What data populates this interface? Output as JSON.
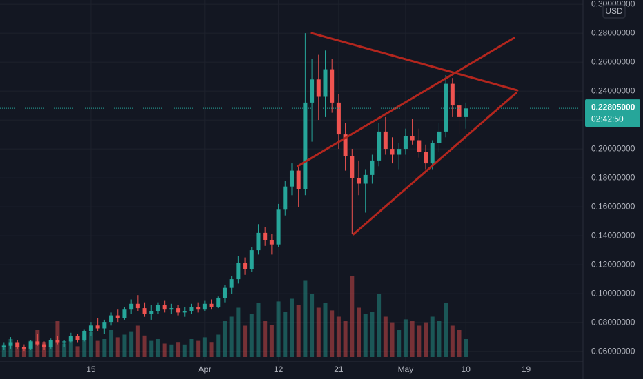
{
  "chart_data": {
    "type": "candlestick",
    "currency": "USD",
    "x": [
      1,
      2,
      3,
      4,
      5,
      6,
      7,
      8,
      9,
      10,
      11,
      12,
      13,
      14,
      15,
      16,
      17,
      18,
      19,
      20,
      21,
      22,
      23,
      24,
      25,
      26,
      27,
      28,
      29,
      30,
      31,
      32,
      33,
      34,
      35,
      36,
      37,
      38,
      39,
      40,
      41,
      42,
      43,
      44,
      45,
      46,
      47,
      48,
      49,
      50,
      51,
      52,
      53,
      54,
      55,
      56,
      57,
      58,
      59,
      60,
      61,
      62,
      63,
      64,
      65,
      66,
      67,
      68,
      69,
      70
    ],
    "ohlc": [
      [
        0.063,
        0.066,
        0.061,
        0.064
      ],
      [
        0.064,
        0.07,
        0.062,
        0.066
      ],
      [
        0.066,
        0.068,
        0.062,
        0.063
      ],
      [
        0.063,
        0.065,
        0.06,
        0.062
      ],
      [
        0.062,
        0.068,
        0.061,
        0.067
      ],
      [
        0.067,
        0.072,
        0.064,
        0.065
      ],
      [
        0.065,
        0.067,
        0.061,
        0.063
      ],
      [
        0.063,
        0.069,
        0.062,
        0.068
      ],
      [
        0.068,
        0.071,
        0.065,
        0.066
      ],
      [
        0.066,
        0.068,
        0.063,
        0.067
      ],
      [
        0.067,
        0.073,
        0.066,
        0.071
      ],
      [
        0.071,
        0.072,
        0.066,
        0.068
      ],
      [
        0.068,
        0.075,
        0.067,
        0.074
      ],
      [
        0.074,
        0.08,
        0.071,
        0.078
      ],
      [
        0.078,
        0.083,
        0.074,
        0.076
      ],
      [
        0.076,
        0.082,
        0.072,
        0.08
      ],
      [
        0.08,
        0.087,
        0.078,
        0.085
      ],
      [
        0.085,
        0.089,
        0.08,
        0.083
      ],
      [
        0.083,
        0.091,
        0.082,
        0.089
      ],
      [
        0.089,
        0.096,
        0.086,
        0.093
      ],
      [
        0.093,
        0.099,
        0.088,
        0.09
      ],
      [
        0.09,
        0.094,
        0.084,
        0.086
      ],
      [
        0.086,
        0.092,
        0.082,
        0.088
      ],
      [
        0.088,
        0.094,
        0.086,
        0.092
      ],
      [
        0.092,
        0.095,
        0.087,
        0.089
      ],
      [
        0.089,
        0.093,
        0.086,
        0.09
      ],
      [
        0.09,
        0.092,
        0.085,
        0.087
      ],
      [
        0.087,
        0.091,
        0.084,
        0.088
      ],
      [
        0.088,
        0.093,
        0.086,
        0.091
      ],
      [
        0.091,
        0.094,
        0.087,
        0.089
      ],
      [
        0.089,
        0.095,
        0.088,
        0.093
      ],
      [
        0.093,
        0.096,
        0.089,
        0.091
      ],
      [
        0.091,
        0.098,
        0.09,
        0.097
      ],
      [
        0.097,
        0.106,
        0.094,
        0.104
      ],
      [
        0.104,
        0.112,
        0.1,
        0.11
      ],
      [
        0.11,
        0.126,
        0.107,
        0.121
      ],
      [
        0.121,
        0.125,
        0.113,
        0.117
      ],
      [
        0.117,
        0.132,
        0.115,
        0.13
      ],
      [
        0.13,
        0.148,
        0.127,
        0.142
      ],
      [
        0.142,
        0.146,
        0.133,
        0.137
      ],
      [
        0.137,
        0.141,
        0.127,
        0.134
      ],
      [
        0.134,
        0.162,
        0.132,
        0.158
      ],
      [
        0.158,
        0.178,
        0.154,
        0.174
      ],
      [
        0.174,
        0.19,
        0.168,
        0.185
      ],
      [
        0.185,
        0.189,
        0.16,
        0.172
      ],
      [
        0.172,
        0.28,
        0.168,
        0.232
      ],
      [
        0.232,
        0.262,
        0.205,
        0.248
      ],
      [
        0.248,
        0.265,
        0.22,
        0.236
      ],
      [
        0.236,
        0.268,
        0.222,
        0.255
      ],
      [
        0.255,
        0.262,
        0.225,
        0.232
      ],
      [
        0.232,
        0.238,
        0.2,
        0.21
      ],
      [
        0.21,
        0.218,
        0.185,
        0.195
      ],
      [
        0.195,
        0.2,
        0.141,
        0.18
      ],
      [
        0.18,
        0.192,
        0.168,
        0.176
      ],
      [
        0.176,
        0.186,
        0.156,
        0.182
      ],
      [
        0.182,
        0.196,
        0.176,
        0.192
      ],
      [
        0.192,
        0.218,
        0.188,
        0.212
      ],
      [
        0.212,
        0.222,
        0.196,
        0.2
      ],
      [
        0.2,
        0.208,
        0.19,
        0.196
      ],
      [
        0.196,
        0.204,
        0.186,
        0.2
      ],
      [
        0.2,
        0.214,
        0.196,
        0.209
      ],
      [
        0.209,
        0.221,
        0.203,
        0.206
      ],
      [
        0.206,
        0.214,
        0.194,
        0.198
      ],
      [
        0.198,
        0.203,
        0.186,
        0.19
      ],
      [
        0.19,
        0.206,
        0.186,
        0.204
      ],
      [
        0.204,
        0.218,
        0.198,
        0.212
      ],
      [
        0.212,
        0.251,
        0.208,
        0.245
      ],
      [
        0.245,
        0.249,
        0.222,
        0.23
      ],
      [
        0.23,
        0.238,
        0.21,
        0.222
      ],
      [
        0.222,
        0.232,
        0.214,
        0.228
      ]
    ],
    "volume": [
      14,
      20,
      12,
      10,
      18,
      30,
      16,
      12,
      40,
      15,
      22,
      12,
      25,
      28,
      18,
      20,
      30,
      22,
      25,
      28,
      35,
      24,
      18,
      20,
      15,
      14,
      16,
      14,
      20,
      18,
      22,
      16,
      25,
      40,
      45,
      55,
      35,
      48,
      60,
      40,
      36,
      62,
      50,
      65,
      58,
      85,
      70,
      55,
      60,
      52,
      45,
      40,
      90,
      55,
      48,
      50,
      70,
      45,
      38,
      30,
      42,
      40,
      35,
      38,
      45,
      40,
      60,
      35,
      30,
      20
    ],
    "vlim": [
      0,
      100
    ],
    "up_color": "#26a69a",
    "down_color": "#ef5350",
    "xlim": [
      0.4,
      87.5
    ],
    "xticks": [
      {
        "value": 14,
        "label": "15"
      },
      {
        "value": 31,
        "label": "Apr"
      },
      {
        "value": 42,
        "label": "12"
      },
      {
        "value": 51,
        "label": "21"
      },
      {
        "value": 61,
        "label": "May"
      },
      {
        "value": 70,
        "label": "10"
      },
      {
        "value": 79,
        "label": "19"
      }
    ],
    "ylim": [
      0.0529,
      0.3029
    ],
    "yticks": [
      {
        "value": 0.06,
        "label": "0.06000000"
      },
      {
        "value": 0.08,
        "label": "0.08000000"
      },
      {
        "value": 0.1,
        "label": "0.10000000"
      },
      {
        "value": 0.12,
        "label": "0.12000000"
      },
      {
        "value": 0.14,
        "label": "0.14000000"
      },
      {
        "value": 0.16,
        "label": "0.16000000"
      },
      {
        "value": 0.18,
        "label": "0.18000000"
      },
      {
        "value": 0.2,
        "label": "0.20000000"
      },
      {
        "value": 0.22,
        "label": "0.22000000"
      },
      {
        "value": 0.24,
        "label": "0.24000000"
      },
      {
        "value": 0.26,
        "label": "0.26000000"
      },
      {
        "value": 0.28,
        "label": "0.28000000"
      },
      {
        "value": 0.3,
        "label": "0.30000000"
      }
    ],
    "grid": true,
    "last_price": {
      "value": 0.22805,
      "label": "0.22805000"
    },
    "countdown": "02:42:50",
    "trendline_color": "#b3261e",
    "trendlines": [
      {
        "points": [
          [
            46.98,
            0.28
          ],
          [
            77.7,
            0.2405
          ]
        ]
      },
      {
        "points": [
          [
            44.9,
            0.1881
          ],
          [
            77.2,
            0.2767
          ]
        ]
      },
      {
        "points": [
          [
            53.2,
            0.141
          ],
          [
            77.5,
            0.2386
          ]
        ]
      }
    ]
  }
}
